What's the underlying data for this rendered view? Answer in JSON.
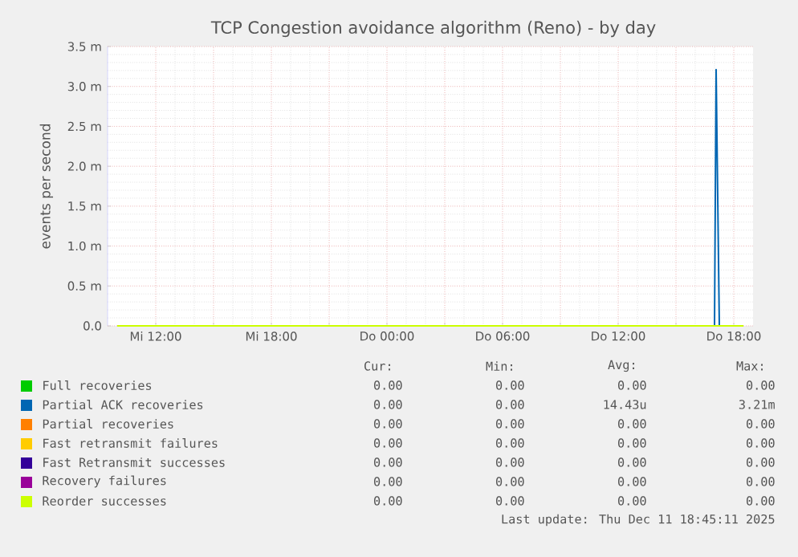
{
  "chart_data": {
    "type": "line",
    "title": "TCP Congestion avoidance algorithm (Reno) - by day",
    "ylabel": "events per second",
    "xlim": [
      "2025-12-10T09:30",
      "2025-12-11T19:00"
    ],
    "ylim": [
      0,
      3.5
    ],
    "xticks": [
      {
        "value": "2025-12-10T12:00",
        "label": "Mi 12:00"
      },
      {
        "value": "2025-12-10T15:00",
        "label": null
      },
      {
        "value": "2025-12-10T18:00",
        "label": "Mi 18:00"
      },
      {
        "value": "2025-12-10T21:00",
        "label": null
      },
      {
        "value": "2025-12-11T00:00",
        "label": "Do 00:00"
      },
      {
        "value": "2025-12-11T03:00",
        "label": null
      },
      {
        "value": "2025-12-11T06:00",
        "label": "Do 06:00"
      },
      {
        "value": "2025-12-11T09:00",
        "label": null
      },
      {
        "value": "2025-12-11T12:00",
        "label": "Do 12:00"
      },
      {
        "value": "2025-12-11T15:00",
        "label": null
      },
      {
        "value": "2025-12-11T18:00",
        "label": "Do 18:00"
      }
    ],
    "yticks": [
      {
        "value": 0,
        "label": "0.0"
      },
      {
        "value": 0.5,
        "label": "0.5 m"
      },
      {
        "value": 1,
        "label": "1.0 m"
      },
      {
        "value": 1.5,
        "label": "1.5 m"
      },
      {
        "value": 2,
        "label": "2.0 m"
      },
      {
        "value": 2.5,
        "label": "2.5 m"
      },
      {
        "value": 3,
        "label": "3.0 m"
      },
      {
        "value": 3.5,
        "label": "3.5 m"
      }
    ],
    "grid": true,
    "legend": "bottom",
    "series": [
      {
        "name": "Full recoveries",
        "color": "#00cc00"
      },
      {
        "name": "Partial ACK recoveries",
        "color": "#0066b3",
        "x": [
          "2025-12-11T17:00",
          "2025-12-11T17:05",
          "2025-12-11T17:15"
        ],
        "values": [
          0,
          3.21,
          0
        ]
      },
      {
        "name": "Partial recoveries",
        "color": "#ff8000"
      },
      {
        "name": "Fast retransmit failures",
        "color": "#ffcc00"
      },
      {
        "name": "Fast Retransmit successes",
        "color": "#330099"
      },
      {
        "name": "Recovery failures",
        "color": "#990099"
      },
      {
        "name": "Reorder successes",
        "color": "#ccff00",
        "x": [
          "2025-12-10T10:00",
          "2025-12-11T18:30"
        ],
        "values": [
          0,
          0
        ]
      }
    ],
    "annotations": [
      "Cur:",
      "Min:",
      "Avg:",
      "Max:",
      "0.00",
      "0.00",
      "0.00",
      "0.00",
      "0.00",
      "0.00",
      "14.43u",
      "3.21m",
      "0.00",
      "0.00",
      "0.00",
      "0.00",
      "0.00",
      "0.00",
      "0.00",
      "0.00",
      "0.00",
      "0.00",
      "0.00",
      "0.00",
      "0.00",
      "0.00",
      "0.00",
      "0.00",
      "0.00",
      "0.00",
      "0.00",
      "0.00",
      "Last update: Thu Dec 11 18:45:11 2025"
    ]
  }
}
